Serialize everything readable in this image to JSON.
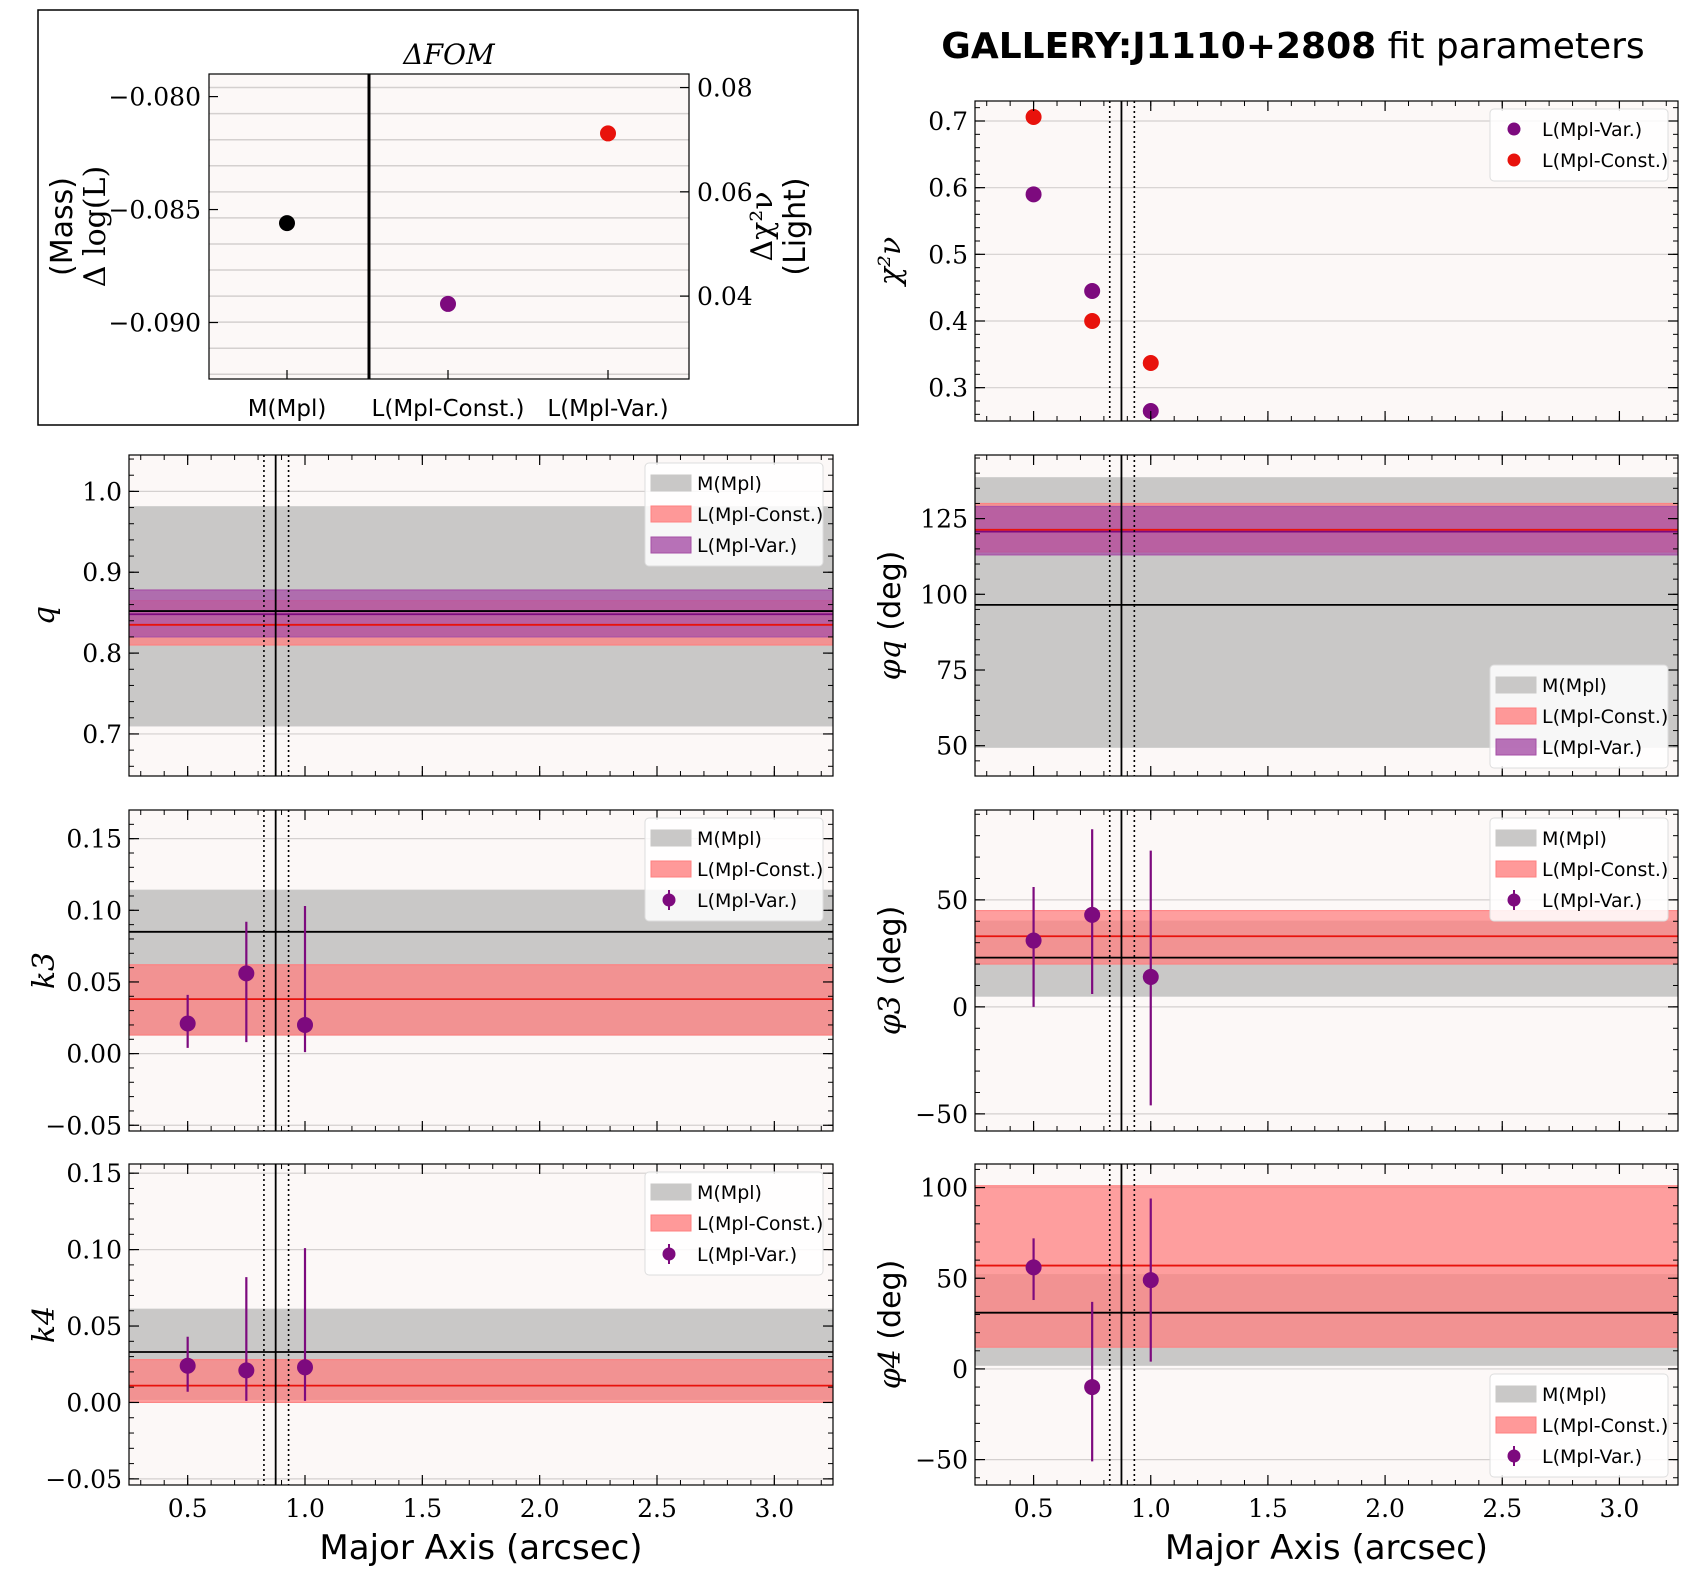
{
  "figure_title": {
    "bold": "GALLERY:J1110+2808",
    "rest": " fit parameters"
  },
  "xlabel": "Major Axis (arcsec)",
  "colors": {
    "mass": "#000000",
    "light_const": "#e8120c",
    "light_var": "#7d0a7e",
    "grey_band": "#c9c8c7",
    "red_band": "#ff8080",
    "purple_band": "#a64fa6",
    "panel_bg": "#fcf8f7",
    "grid": "#d4d0cf"
  },
  "chart_data": [
    {
      "id": "fom",
      "type": "scatter",
      "title": "ΔFOM",
      "categories": [
        "M(Mpl)",
        "L(Mpl-Const.)",
        "L(Mpl-Var.)"
      ],
      "ylabel_left": [
        "(Mass)",
        "Δ log(L)"
      ],
      "ylabel_right": [
        "Δχ²ν",
        "(Light)"
      ],
      "ylim_left": [
        -0.0925,
        -0.079
      ],
      "ylim_right": [
        0.0241,
        0.0826
      ],
      "yticks_left": [
        -0.08,
        -0.085,
        -0.09
      ],
      "yticks_left_labels": [
        "−0.080",
        "−0.085",
        "−0.090"
      ],
      "yticks_right": [
        0.08,
        0.06,
        0.04
      ],
      "yticks_right_labels": [
        "0.08",
        "0.06",
        "0.04"
      ],
      "points": [
        {
          "category": "M(Mpl)",
          "axis": "left",
          "value": -0.0856,
          "color": "#000000"
        },
        {
          "category": "L(Mpl-Const.)",
          "axis": "right",
          "value": 0.0385,
          "color": "#7d0a7e"
        },
        {
          "category": "L(Mpl-Var.)",
          "axis": "right",
          "value": 0.0712,
          "color": "#e8120c"
        }
      ]
    },
    {
      "id": "chi2",
      "type": "scatter",
      "ylabel": "χ²ν",
      "ylim": [
        0.25,
        0.73
      ],
      "yticks": [
        0.3,
        0.4,
        0.5,
        0.6,
        0.7
      ],
      "yticks_labels": [
        "0.3",
        "0.4",
        "0.5",
        "0.6",
        "0.7"
      ],
      "legend": [
        "L(Mpl-Var.)",
        "L(Mpl-Const.)"
      ],
      "series": [
        {
          "name": "L(Mpl-Var.)",
          "color": "#7d0a7e",
          "x": [
            0.5,
            0.75,
            1.0
          ],
          "y": [
            0.59,
            0.445,
            0.265
          ]
        },
        {
          "name": "L(Mpl-Const.)",
          "color": "#e8120c",
          "x": [
            0.5,
            0.75,
            1.0
          ],
          "y": [
            0.706,
            0.4,
            0.337
          ]
        }
      ]
    },
    {
      "id": "q",
      "type": "area",
      "ylabel": "q",
      "ylim": [
        0.648,
        1.045
      ],
      "yticks": [
        0.7,
        0.8,
        0.9,
        1.0
      ],
      "yticks_labels": [
        "0.7",
        "0.8",
        "0.9",
        "1.0"
      ],
      "legend": [
        "M(Mpl)",
        "L(Mpl-Const.)",
        "L(Mpl-Var.)"
      ],
      "legend_pos": "top-right",
      "bands": [
        {
          "name": "M(Mpl)",
          "low": 0.71,
          "high": 0.981,
          "line": 0.852,
          "color": "#c9c8c7",
          "line_color": "#000000"
        },
        {
          "name": "L(Mpl-Const.)",
          "low": 0.81,
          "high": 0.865,
          "line": 0.835,
          "color": "#ff8080",
          "line_color": "#e8120c"
        },
        {
          "name": "L(Mpl-Var.)",
          "low": 0.82,
          "high": 0.878,
          "line": 0.848,
          "color": "#a64fa6",
          "line_color": "#7d0a7e"
        }
      ]
    },
    {
      "id": "phiq",
      "type": "area",
      "ylabel": "φq (deg)",
      "ylim": [
        40,
        146
      ],
      "yticks": [
        50,
        75,
        100,
        125
      ],
      "yticks_labels": [
        "50",
        "75",
        "100",
        "125"
      ],
      "legend": [
        "M(Mpl)",
        "L(Mpl-Const.)",
        "L(Mpl-Var.)"
      ],
      "legend_pos": "bottom-right",
      "bands": [
        {
          "name": "M(Mpl)",
          "low": 49.5,
          "high": 138.5,
          "line": 96.5,
          "color": "#c9c8c7",
          "line_color": "#000000"
        },
        {
          "name": "L(Mpl-Const.)",
          "low": 114,
          "high": 130,
          "line": 121.3,
          "color": "#ff8080",
          "line_color": "#e8120c"
        },
        {
          "name": "L(Mpl-Var.)",
          "low": 113,
          "high": 129,
          "line": 120.7,
          "color": "#a64fa6",
          "line_color": "#7d0a7e"
        }
      ]
    },
    {
      "id": "k3",
      "type": "scatter",
      "ylabel": "k3",
      "ylim": [
        -0.054,
        0.17
      ],
      "yticks": [
        -0.05,
        0.0,
        0.05,
        0.1,
        0.15
      ],
      "yticks_labels": [
        "−0.05",
        "0.00",
        "0.05",
        "0.10",
        "0.15"
      ],
      "legend": [
        "M(Mpl)",
        "L(Mpl-Const.)",
        "L(Mpl-Var.)"
      ],
      "legend_pos": "top-right",
      "bands": [
        {
          "name": "M(Mpl)",
          "low": 0.013,
          "high": 0.114,
          "line": 0.085,
          "color": "#c9c8c7",
          "line_color": "#000000"
        },
        {
          "name": "L(Mpl-Const.)",
          "low": 0.013,
          "high": 0.062,
          "line": 0.038,
          "color": "#ff8080",
          "line_color": "#e8120c"
        }
      ],
      "series": [
        {
          "name": "L(Mpl-Var.)",
          "color": "#7d0a7e",
          "x": [
            0.5,
            0.75,
            1.0
          ],
          "y": [
            0.021,
            0.056,
            0.02
          ],
          "yerr_low": [
            0.004,
            0.008,
            0.001
          ],
          "yerr_high": [
            0.041,
            0.092,
            0.103
          ]
        }
      ]
    },
    {
      "id": "phi3",
      "type": "scatter",
      "ylabel": "φ3 (deg)",
      "ylim": [
        -58,
        92
      ],
      "yticks": [
        -50,
        0,
        50
      ],
      "yticks_labels": [
        "−50",
        "0",
        "50"
      ],
      "legend": [
        "M(Mpl)",
        "L(Mpl-Const.)",
        "L(Mpl-Var.)"
      ],
      "legend_pos": "top-right",
      "bands": [
        {
          "name": "M(Mpl)",
          "low": 5,
          "high": 40,
          "line": 23,
          "color": "#c9c8c7",
          "line_color": "#000000"
        },
        {
          "name": "L(Mpl-Const.)",
          "low": 20,
          "high": 45,
          "line": 33,
          "color": "#ff8080",
          "line_color": "#e8120c"
        }
      ],
      "series": [
        {
          "name": "L(Mpl-Var.)",
          "color": "#7d0a7e",
          "x": [
            0.5,
            0.75,
            1.0
          ],
          "y": [
            31,
            43,
            14
          ],
          "yerr_low": [
            0,
            6,
            -46
          ],
          "yerr_high": [
            56,
            83,
            73
          ]
        }
      ]
    },
    {
      "id": "k4",
      "type": "scatter",
      "ylabel": "k4",
      "ylim": [
        -0.054,
        0.156
      ],
      "yticks": [
        -0.05,
        0.0,
        0.05,
        0.1,
        0.15
      ],
      "yticks_labels": [
        "−0.05",
        "0.00",
        "0.05",
        "0.10",
        "0.15"
      ],
      "legend": [
        "M(Mpl)",
        "L(Mpl-Const.)",
        "L(Mpl-Var.)"
      ],
      "legend_pos": "top-right",
      "bands": [
        {
          "name": "M(Mpl)",
          "low": 0.002,
          "high": 0.061,
          "line": 0.033,
          "color": "#c9c8c7",
          "line_color": "#000000"
        },
        {
          "name": "L(Mpl-Const.)",
          "low": 0.0,
          "high": 0.028,
          "line": 0.011,
          "color": "#ff8080",
          "line_color": "#e8120c"
        }
      ],
      "series": [
        {
          "name": "L(Mpl-Var.)",
          "color": "#7d0a7e",
          "x": [
            0.5,
            0.75,
            1.0
          ],
          "y": [
            0.024,
            0.021,
            0.023
          ],
          "yerr_low": [
            0.007,
            0.001,
            0.001
          ],
          "yerr_high": [
            0.043,
            0.082,
            0.101
          ]
        }
      ]
    },
    {
      "id": "phi4",
      "type": "scatter",
      "ylabel": "φ4 (deg)",
      "ylim": [
        -64,
        113
      ],
      "yticks": [
        -50,
        0,
        50,
        100
      ],
      "yticks_labels": [
        "−50",
        "0",
        "50",
        "100"
      ],
      "legend": [
        "M(Mpl)",
        "L(Mpl-Const.)",
        "L(Mpl-Var.)"
      ],
      "legend_pos": "bottom-right",
      "bands": [
        {
          "name": "M(Mpl)",
          "low": 2,
          "high": 52,
          "line": 31,
          "color": "#c9c8c7",
          "line_color": "#000000"
        },
        {
          "name": "L(Mpl-Const.)",
          "low": 12,
          "high": 101,
          "line": 57,
          "color": "#ff8080",
          "line_color": "#e8120c"
        }
      ],
      "series": [
        {
          "name": "L(Mpl-Var.)",
          "color": "#7d0a7e",
          "x": [
            0.5,
            0.75,
            1.0
          ],
          "y": [
            56,
            -10,
            49
          ],
          "yerr_low": [
            38,
            -51,
            4
          ],
          "yerr_high": [
            72,
            37,
            94
          ]
        }
      ]
    }
  ],
  "x_axis": {
    "xlim": [
      0.25,
      3.25
    ],
    "xticks": [
      0.5,
      1.0,
      1.5,
      2.0,
      2.5,
      3.0
    ],
    "xticks_labels": [
      "0.5",
      "1.0",
      "1.5",
      "2.0",
      "2.5",
      "3.0"
    ],
    "vlines_solid": [
      0.875
    ],
    "vlines_dotted": [
      0.825,
      0.93
    ]
  }
}
